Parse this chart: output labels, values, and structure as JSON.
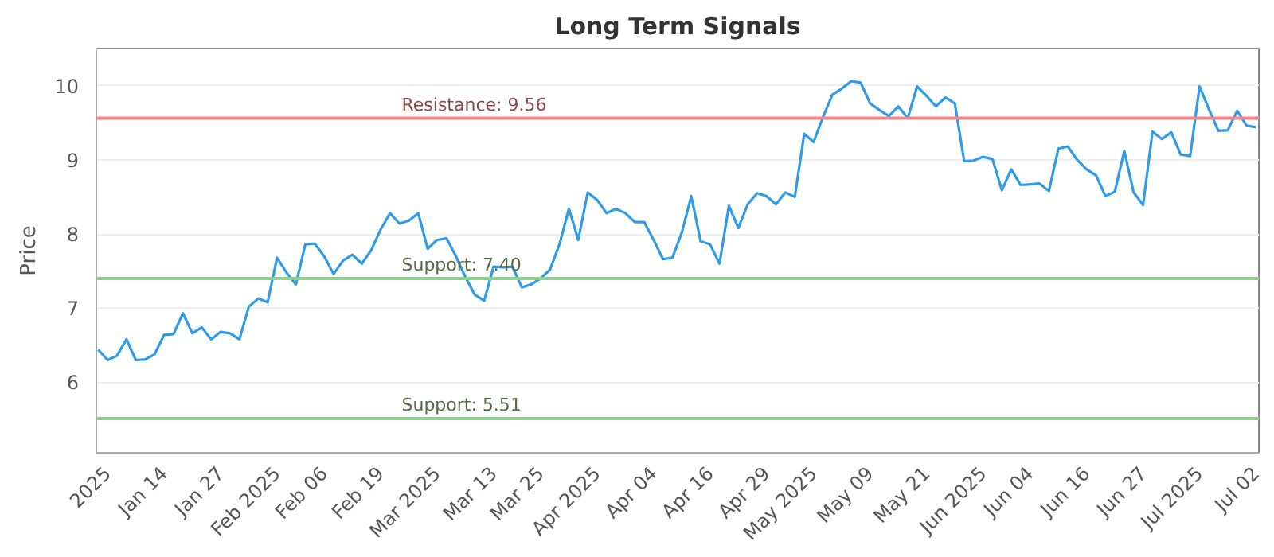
{
  "chart_data": {
    "type": "line",
    "title": "Long Term Signals",
    "ylabel": "Price",
    "categories": [
      null,
      "2025",
      null,
      null,
      null,
      null,
      null,
      "Jan 14",
      null,
      null,
      null,
      null,
      null,
      "Jan 27",
      null,
      null,
      null,
      null,
      null,
      "Feb 2025",
      null,
      null,
      null,
      null,
      "Feb 06",
      null,
      null,
      null,
      null,
      null,
      "Feb 19",
      null,
      null,
      null,
      null,
      null,
      "Mar 2025",
      null,
      null,
      null,
      null,
      null,
      "Mar 13",
      null,
      null,
      null,
      null,
      "Mar 25",
      null,
      null,
      null,
      null,
      null,
      "Apr 2025",
      null,
      null,
      null,
      null,
      null,
      "Apr 04",
      null,
      null,
      null,
      null,
      null,
      "Apr 16",
      null,
      null,
      null,
      null,
      null,
      "Apr 29",
      null,
      null,
      null,
      null,
      "May 2025",
      null,
      null,
      null,
      null,
      null,
      "May 09",
      null,
      null,
      null,
      null,
      null,
      "May 21",
      null,
      null,
      null,
      null,
      null,
      "Jun 2025",
      null,
      null,
      null,
      null,
      "Jun 04",
      null,
      null,
      null,
      null,
      null,
      "Jun 16",
      null,
      null,
      null,
      null,
      null,
      "Jun 27",
      null,
      null,
      null,
      null,
      null,
      "Jul 2025",
      null,
      null,
      null,
      null,
      null,
      "Jul 02"
    ],
    "series": [
      {
        "color": "#2f9be8",
        "values": [
          6.44,
          6.3,
          6.36,
          6.58,
          6.3,
          6.31,
          6.38,
          6.64,
          6.65,
          6.93,
          6.66,
          6.74,
          6.58,
          6.68,
          6.66,
          6.58,
          7.02,
          7.13,
          7.08,
          7.68,
          7.48,
          7.32,
          7.86,
          7.87,
          7.7,
          7.46,
          7.64,
          7.72,
          7.6,
          7.78,
          8.06,
          8.28,
          8.14,
          8.18,
          8.28,
          7.8,
          7.92,
          7.94,
          7.7,
          7.42,
          7.18,
          7.1,
          7.56,
          7.55,
          7.56,
          7.28,
          7.32,
          7.4,
          7.52,
          7.86,
          8.34,
          7.92,
          8.56,
          8.46,
          8.28,
          8.34,
          8.28,
          8.16,
          8.16,
          7.92,
          7.66,
          7.68,
          8.02,
          8.51,
          7.9,
          7.86,
          7.6,
          8.38,
          8.08,
          8.4,
          8.55,
          8.51,
          8.4,
          8.56,
          8.5,
          9.35,
          9.24,
          9.58,
          9.88,
          9.96,
          10.06,
          10.04,
          9.76,
          9.67,
          9.59,
          9.72,
          9.56,
          9.99,
          9.86,
          9.72,
          9.84,
          9.76,
          8.98,
          8.99,
          9.04,
          9.01,
          8.59,
          8.87,
          8.66,
          8.67,
          8.68,
          8.58,
          9.15,
          9.18,
          9.0,
          8.87,
          8.79,
          8.51,
          8.57,
          9.12,
          8.56,
          8.39,
          9.38,
          9.28,
          9.37,
          9.07,
          9.05,
          9.99,
          9.68,
          9.39,
          9.4,
          9.66,
          9.46,
          9.44
        ]
      }
    ],
    "ylim": [
      5.05,
      10.5
    ],
    "yticks": [
      6,
      7,
      8,
      9,
      10
    ],
    "grid": "y",
    "marker": "none",
    "line_style": "solid",
    "ref_lines": [
      {
        "axis": "y",
        "value": 9.56,
        "label": "Resistance: 9.56",
        "color": "#f08a8a"
      },
      {
        "axis": "y",
        "value": 7.4,
        "label": "Support: 7.40",
        "color": "#8fd08f"
      },
      {
        "axis": "y",
        "value": 5.51,
        "label": "Support: 5.51",
        "color": "#8fd08f"
      }
    ]
  }
}
